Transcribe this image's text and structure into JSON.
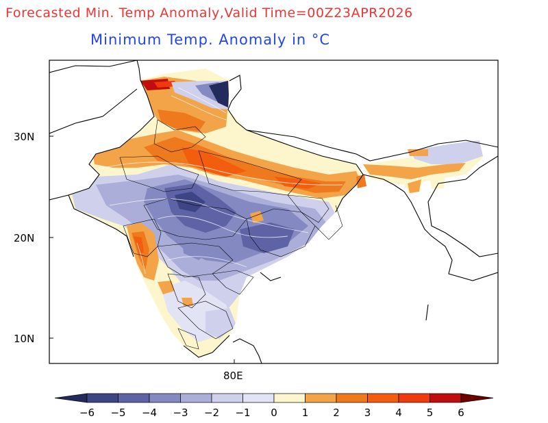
{
  "header": {
    "title": "Forecasted Min. Temp Anomaly,Valid Time=00Z23APR2026",
    "subtitle": "Minimum Temp. Anomaly in °C"
  },
  "map": {
    "lat_ticks": [
      "30N",
      "20N",
      "10N"
    ],
    "lon_ticks": [
      "80E"
    ]
  },
  "colorbar": {
    "levels": [
      "-6",
      "-5",
      "-4",
      "-3",
      "-2",
      "-1",
      "0",
      "1",
      "2",
      "3",
      "4",
      "5",
      "6"
    ],
    "colors": [
      "#232a5c",
      "#3d4585",
      "#5d63a5",
      "#8489c2",
      "#aaaed8",
      "#cfd1ec",
      "#e2e3f5",
      "#fdf6cc",
      "#f4a448",
      "#ef7a1e",
      "#f25e0d",
      "#ee3a0c",
      "#c00d0d",
      "#6e0000"
    ]
  },
  "palette": {
    "title_color": "#ee3333",
    "subtitle_color": "#2244ee"
  }
}
